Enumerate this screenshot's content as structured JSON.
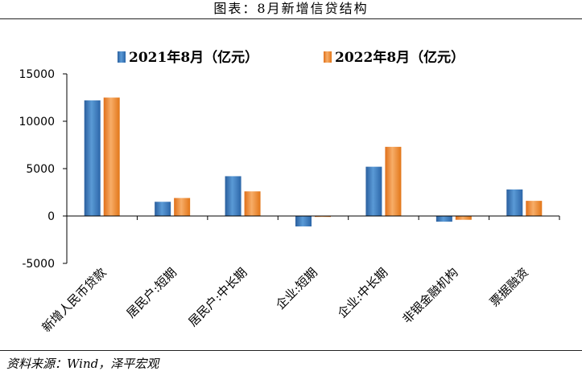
{
  "figure": {
    "title": "图表：8月新增信贷结构",
    "source": "资料来源：Wind，泽平宏观"
  },
  "chart_data": {
    "type": "bar",
    "categories": [
      "新增人民币贷款",
      "居民户:短期",
      "居民户:中长期",
      "企业:短期",
      "企业:中长期",
      "非银金融机构",
      "票据融资"
    ],
    "series": [
      {
        "name": "2021年8月（亿元）",
        "color": "#3a7dc4",
        "values": [
          12200,
          1500,
          4200,
          -1100,
          5200,
          -600,
          2800
        ]
      },
      {
        "name": "2022年8月（亿元）",
        "color": "#f08a2e",
        "values": [
          12500,
          1900,
          2600,
          -100,
          7300,
          -400,
          1600
        ]
      }
    ],
    "yticks": [
      15000,
      10000,
      5000,
      0,
      -5000
    ],
    "ylim": [
      -5000,
      15000
    ],
    "legend": "top",
    "grid": false
  }
}
